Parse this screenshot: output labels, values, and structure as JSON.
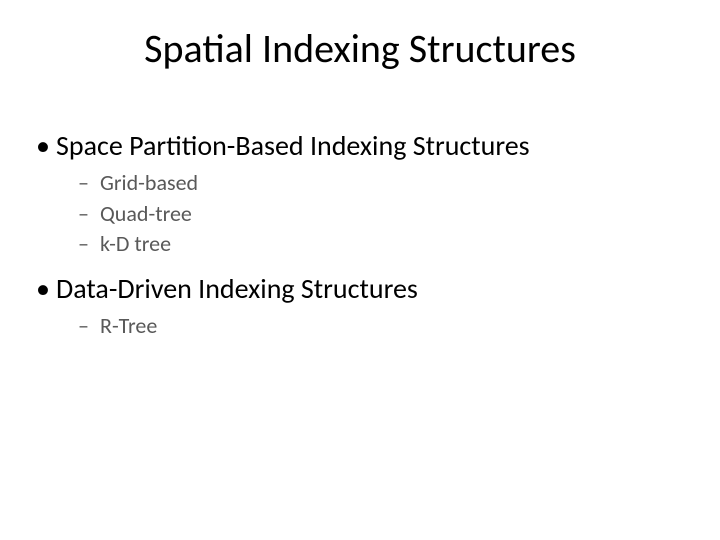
{
  "slide": {
    "title": "Spatial Indexing Structures",
    "title_fontsize": 40,
    "title_color": "#000000",
    "background_color": "#ffffff",
    "body_fontsize_lvl1": 28,
    "body_fontsize_lvl2": 22,
    "body_color_lvl1": "#000000",
    "body_color_lvl2": "#595959",
    "bullets": [
      {
        "text": "Space Partition-Based Indexing Structures",
        "sub": [
          "Grid-based",
          "Quad-tree",
          "k-D tree"
        ]
      },
      {
        "text": "Data-Driven Indexing Structures",
        "sub": [
          "R-Tree"
        ]
      }
    ]
  }
}
